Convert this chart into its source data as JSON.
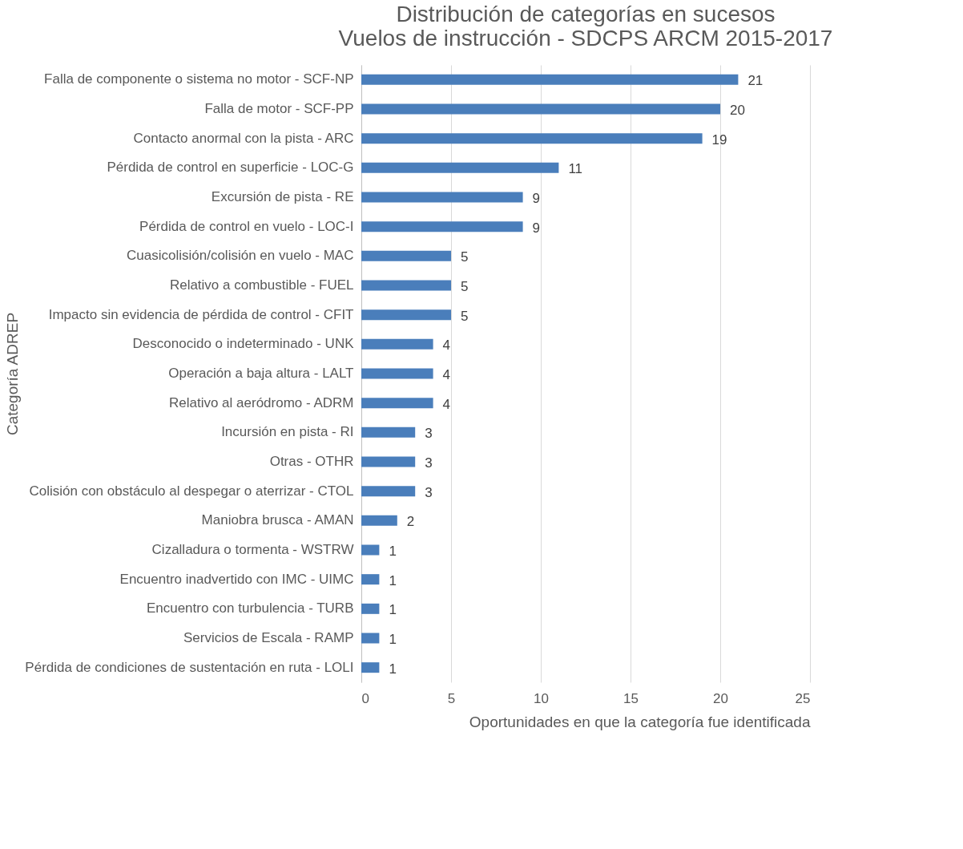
{
  "chart_data": {
    "type": "bar",
    "orientation": "horizontal",
    "title": "Distribución de categorías en sucesos\nVuelos de instrucción - SDCPS ARCM 2015-2017",
    "xlabel": "Oportunidades en que la categoría fue identificada",
    "ylabel": "Categoría ADREP",
    "categories": [
      "Falla de componente o sistema no motor - SCF-NP",
      "Falla de motor - SCF-PP",
      "Contacto anormal con la pista - ARC",
      "Pérdida de control en superficie - LOC-G",
      "Excursión de pista - RE",
      "Pérdida de control en vuelo - LOC-I",
      "Cuasicolisión/colisión en vuelo - MAC",
      "Relativo a combustible - FUEL",
      "Impacto sin evidencia de pérdida de control - CFIT",
      "Desconocido o indeterminado - UNK",
      "Operación a baja altura - LALT",
      "Relativo al aeródromo - ADRM",
      "Incursión en pista - RI",
      "Otras - OTHR",
      "Colisión con obstáculo al despegar o aterrizar - CTOL",
      "Maniobra brusca - AMAN",
      "Cizalladura o tormenta - WSTRW",
      "Encuentro inadvertido con IMC - UIMC",
      "Encuentro con turbulencia - TURB",
      "Servicios de Escala - RAMP",
      "Pérdida de condiciones de sustentación en ruta - LOLI"
    ],
    "values": [
      21,
      20,
      19,
      11,
      9,
      9,
      5,
      5,
      5,
      4,
      4,
      4,
      3,
      3,
      3,
      2,
      1,
      1,
      1,
      1,
      1
    ],
    "color": "#4a7ebb",
    "xlim": [
      0,
      25
    ],
    "xticks": [
      0,
      5,
      10,
      15,
      20,
      25
    ],
    "grid": "x",
    "data_labels": true
  }
}
